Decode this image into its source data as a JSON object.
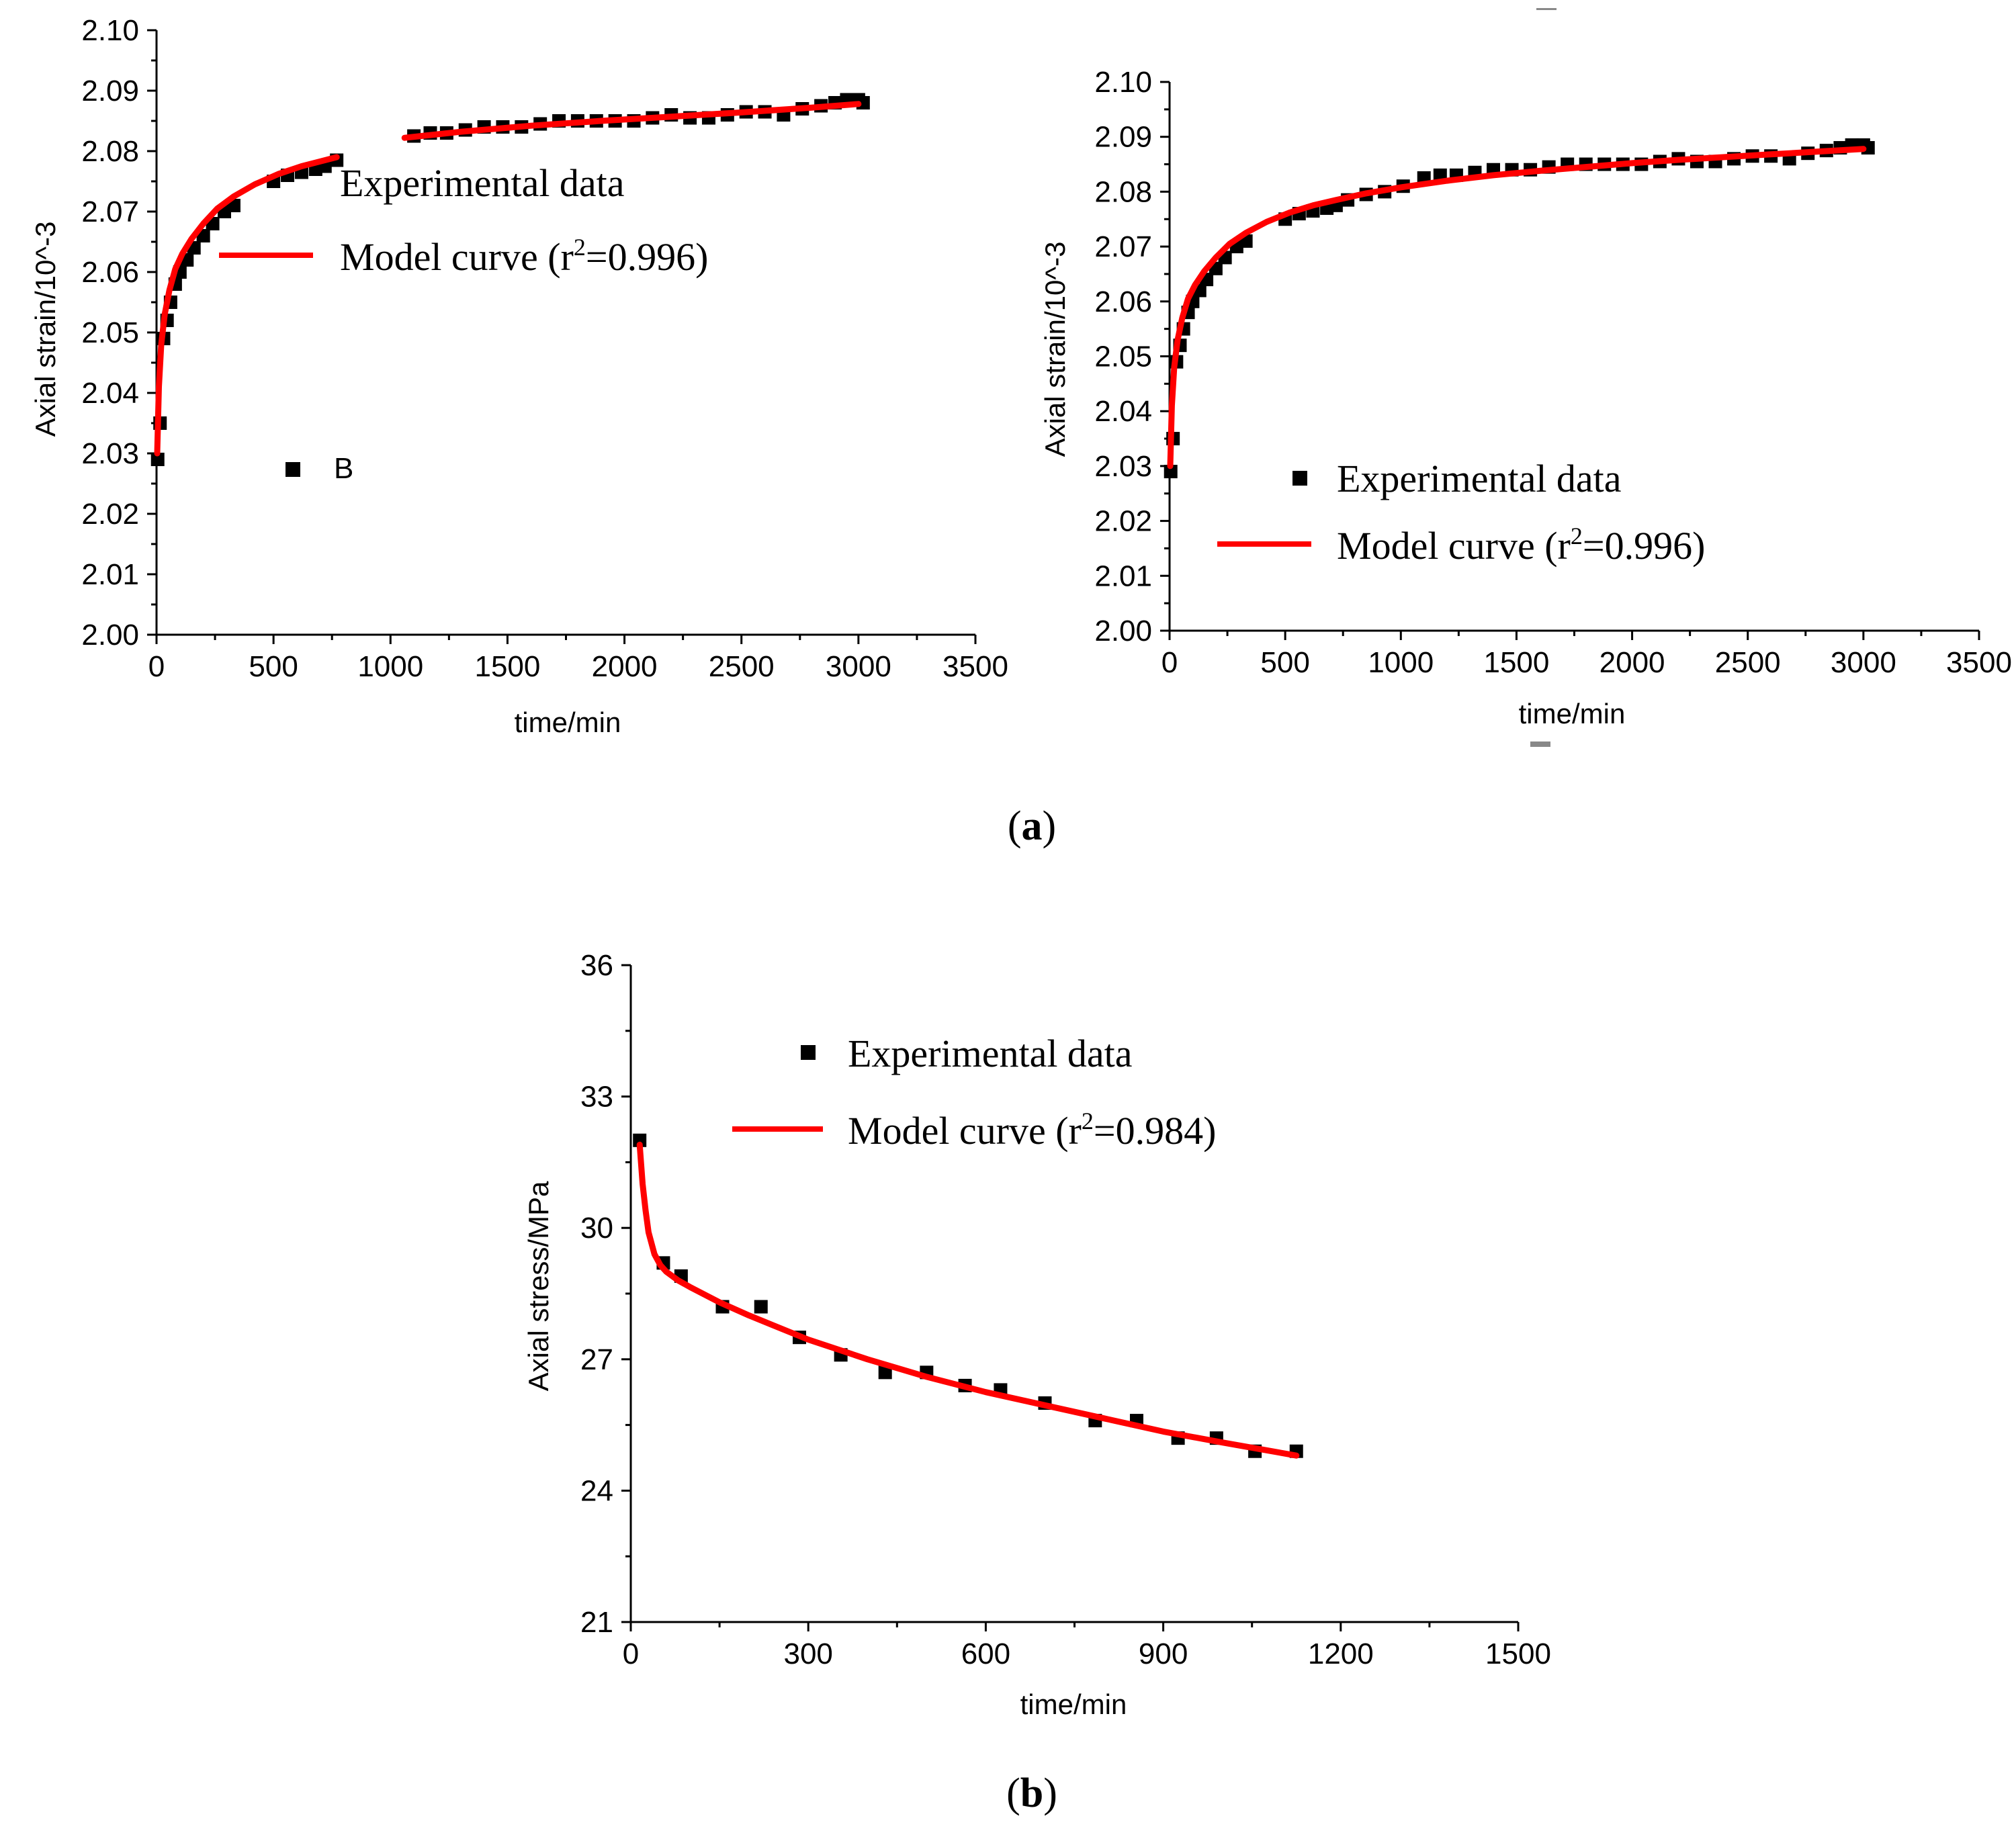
{
  "chart_data": [
    {
      "id": "a-left",
      "type": "scatter",
      "xlabel": "time/min",
      "ylabel": "Axial strain/10^-3",
      "xlim": [
        0,
        3500
      ],
      "ylim": [
        2.0,
        2.1
      ],
      "xticks": [
        "0",
        "500",
        "1000",
        "1500",
        "2000",
        "2500",
        "3000",
        "3500"
      ],
      "yticks": [
        "2.00",
        "2.01",
        "2.02",
        "2.03",
        "2.04",
        "2.05",
        "2.06",
        "2.07",
        "2.08",
        "2.09",
        "2.10"
      ],
      "legend": {
        "experimental": "Experimental data",
        "model": "Model curve (r",
        "model_sup": "2",
        "model_tail": "=0.996)"
      },
      "stray_legend_label": "B",
      "series": [
        {
          "name": "Experimental data",
          "kind": "points",
          "x": [
            5,
            15,
            30,
            45,
            60,
            80,
            100,
            130,
            160,
            200,
            240,
            290,
            330,
            500,
            560,
            620,
            680,
            720,
            770,
            1100,
            1170,
            1240,
            1320,
            1400,
            1480,
            1560,
            1640,
            1720,
            1800,
            1880,
            1960,
            2040,
            2120,
            2200,
            2280,
            2360,
            2440,
            2520,
            2600,
            2680,
            2760,
            2840,
            2900,
            2950,
            3000,
            3020
          ],
          "y": [
            2.029,
            2.035,
            2.049,
            2.052,
            2.055,
            2.058,
            2.06,
            2.062,
            2.064,
            2.066,
            2.068,
            2.07,
            2.071,
            2.075,
            2.076,
            2.0765,
            2.077,
            2.0775,
            2.0785,
            2.0825,
            2.083,
            2.083,
            2.0835,
            2.084,
            2.084,
            2.084,
            2.0845,
            2.085,
            2.085,
            2.085,
            2.085,
            2.085,
            2.0855,
            2.086,
            2.0855,
            2.0855,
            2.086,
            2.0865,
            2.0865,
            2.086,
            2.087,
            2.0875,
            2.088,
            2.0885,
            2.0885,
            2.088
          ]
        },
        {
          "name": "Model curve",
          "kind": "line",
          "segments": [
            {
              "x": [
                3,
                10,
                20,
                35,
                55,
                80,
                110,
                150,
                200,
                260,
                330,
                420,
                520,
                620,
                700,
                770
              ],
              "y": [
                2.03,
                2.041,
                2.048,
                2.053,
                2.057,
                2.0605,
                2.063,
                2.0655,
                2.068,
                2.0705,
                2.0725,
                2.0745,
                2.0762,
                2.0775,
                2.0783,
                2.079
              ]
            },
            {
              "x": [
                1060,
                1300,
                1600,
                1900,
                2200,
                2500,
                2800,
                3000
              ],
              "y": [
                2.0822,
                2.0832,
                2.0842,
                2.085,
                2.0857,
                2.0864,
                2.0872,
                2.0878
              ]
            }
          ]
        }
      ]
    },
    {
      "id": "a-right",
      "type": "scatter",
      "xlabel": "time/min",
      "ylabel": "Axial strain/10^-3",
      "xlim": [
        0,
        3500
      ],
      "ylim": [
        2.0,
        2.1
      ],
      "xticks": [
        "0",
        "500",
        "1000",
        "1500",
        "2000",
        "2500",
        "3000",
        "3500"
      ],
      "yticks": [
        "2.00",
        "2.01",
        "2.02",
        "2.03",
        "2.04",
        "2.05",
        "2.06",
        "2.07",
        "2.08",
        "2.09",
        "2.10"
      ],
      "legend": {
        "experimental": "Experimental data",
        "model": "Model curve (r",
        "model_sup": "2",
        "model_tail": "=0.996)"
      },
      "series": [
        {
          "name": "Experimental data",
          "kind": "points",
          "x": [
            5,
            15,
            30,
            45,
            60,
            80,
            100,
            130,
            160,
            200,
            240,
            290,
            330,
            500,
            560,
            620,
            680,
            720,
            770,
            850,
            930,
            1010,
            1100,
            1170,
            1240,
            1320,
            1400,
            1480,
            1560,
            1640,
            1720,
            1800,
            1880,
            1960,
            2040,
            2120,
            2200,
            2280,
            2360,
            2440,
            2520,
            2600,
            2680,
            2760,
            2840,
            2900,
            2950,
            3000,
            3020
          ],
          "y": [
            2.029,
            2.035,
            2.049,
            2.052,
            2.055,
            2.058,
            2.06,
            2.062,
            2.064,
            2.066,
            2.068,
            2.07,
            2.071,
            2.075,
            2.076,
            2.0765,
            2.077,
            2.0775,
            2.0785,
            2.0795,
            2.08,
            2.081,
            2.0825,
            2.083,
            2.083,
            2.0835,
            2.084,
            2.084,
            2.084,
            2.0845,
            2.085,
            2.085,
            2.085,
            2.085,
            2.085,
            2.0855,
            2.086,
            2.0855,
            2.0855,
            2.086,
            2.0865,
            2.0865,
            2.086,
            2.087,
            2.0875,
            2.088,
            2.0885,
            2.0885,
            2.088
          ]
        },
        {
          "name": "Model curve",
          "kind": "line",
          "segments": [
            {
              "x": [
                3,
                10,
                20,
                35,
                55,
                80,
                110,
                150,
                200,
                260,
                330,
                420,
                520,
                620,
                720,
                850,
                1000,
                1200,
                1400,
                1600,
                1800,
                2000,
                2200,
                2400,
                2600,
                2800,
                3000
              ],
              "y": [
                2.03,
                2.041,
                2.048,
                2.053,
                2.057,
                2.0605,
                2.063,
                2.0655,
                2.068,
                2.0705,
                2.0725,
                2.0745,
                2.0762,
                2.0775,
                2.0785,
                2.0797,
                2.0808,
                2.082,
                2.083,
                2.0838,
                2.0845,
                2.0852,
                2.0858,
                2.0863,
                2.0868,
                2.0873,
                2.0878
              ]
            }
          ]
        }
      ]
    },
    {
      "id": "b",
      "type": "scatter",
      "xlabel": "time/min",
      "ylabel": "Axial stress/MPa",
      "xlim": [
        0,
        1500
      ],
      "ylim": [
        21,
        36
      ],
      "xticks": [
        "0",
        "300",
        "600",
        "900",
        "1200",
        "1500"
      ],
      "yticks": [
        "21",
        "24",
        "27",
        "30",
        "33",
        "36"
      ],
      "legend": {
        "experimental": "Experimental data",
        "model": "Model curve (r",
        "model_sup": "2",
        "model_tail": "=0.984)"
      },
      "series": [
        {
          "name": "Experimental data",
          "kind": "points",
          "x": [
            15,
            55,
            85,
            155,
            220,
            285,
            355,
            430,
            500,
            565,
            625,
            700,
            785,
            855,
            925,
            990,
            1055,
            1125
          ],
          "y": [
            32.0,
            29.2,
            28.9,
            28.2,
            28.2,
            27.5,
            27.1,
            26.7,
            26.7,
            26.4,
            26.3,
            26.0,
            25.6,
            25.6,
            25.2,
            25.2,
            24.9,
            24.9
          ]
        },
        {
          "name": "Model curve",
          "kind": "line",
          "segments": [
            {
              "x": [
                15,
                20,
                25,
                30,
                40,
                50,
                60,
                80,
                100,
                150,
                200,
                300,
                400,
                500,
                600,
                700,
                800,
                900,
                1000,
                1125
              ],
              "y": [
                31.9,
                31.0,
                30.4,
                29.9,
                29.4,
                29.15,
                29.0,
                28.8,
                28.65,
                28.3,
                28.0,
                27.45,
                27.0,
                26.6,
                26.25,
                25.95,
                25.65,
                25.35,
                25.1,
                24.8
              ]
            }
          ]
        }
      ]
    }
  ],
  "panel_labels": {
    "a": "a",
    "b": "b"
  },
  "colors": {
    "model": "#ff0000",
    "marker": "#000000"
  }
}
